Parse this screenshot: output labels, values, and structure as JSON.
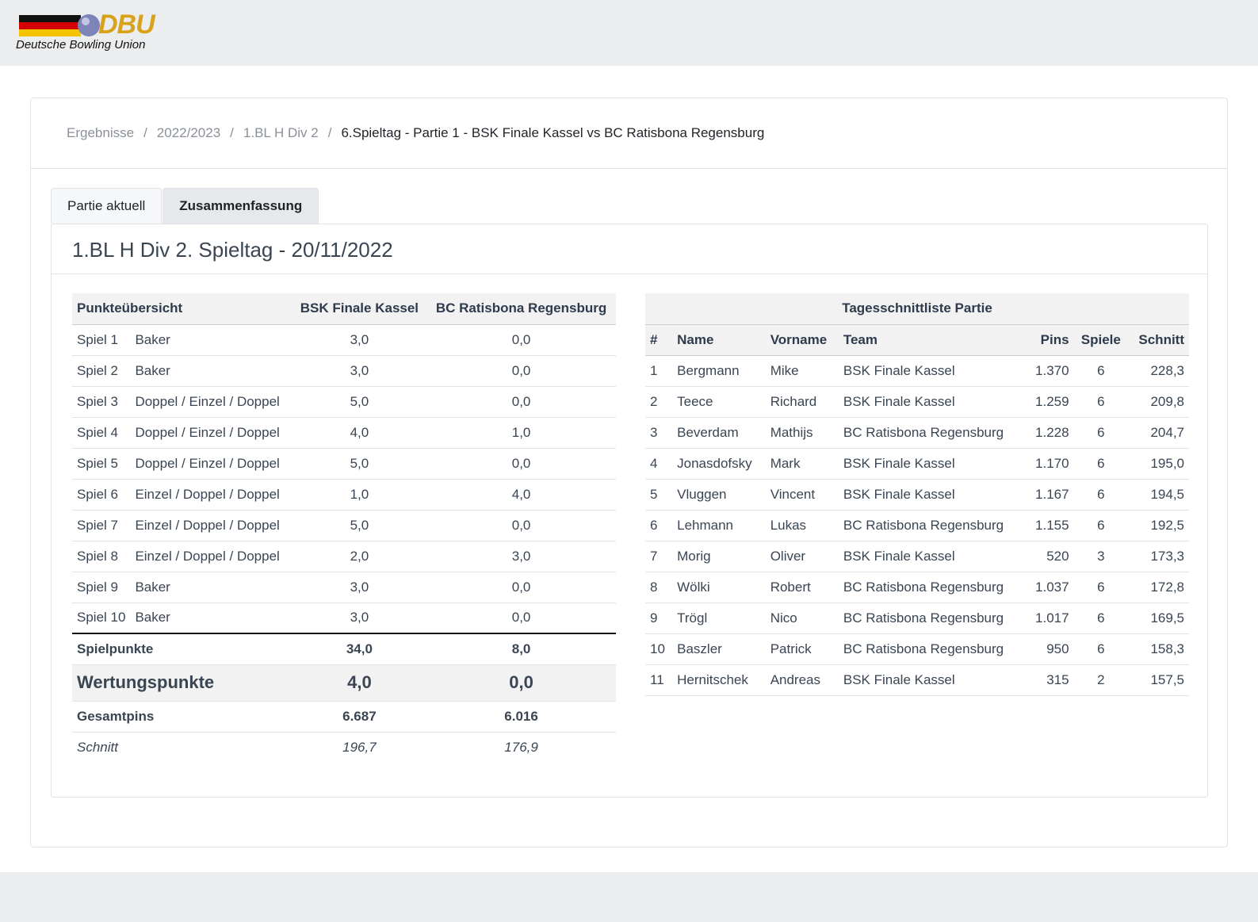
{
  "header": {
    "logo_text": "DBU",
    "subtitle": "Deutsche Bowling Union"
  },
  "breadcrumb": [
    "Ergebnisse",
    "2022/2023",
    "1.BL H Div 2",
    "6.Spieltag - Partie 1 - BSK Finale Kassel vs BC Ratisbona Regensburg"
  ],
  "tabs": [
    "Partie aktuell",
    "Zusammenfassung"
  ],
  "card_title": "1.BL H Div 2. Spieltag - 20/11/2022",
  "left_table": {
    "header": [
      "Punkteübersicht",
      "BSK Finale Kassel",
      "BC Ratisbona Regensburg"
    ],
    "rows": [
      [
        "Spiel 1",
        "Baker",
        "3,0",
        "0,0"
      ],
      [
        "Spiel 2",
        "Baker",
        "3,0",
        "0,0"
      ],
      [
        "Spiel 3",
        "Doppel / Einzel / Doppel",
        "5,0",
        "0,0"
      ],
      [
        "Spiel 4",
        "Doppel / Einzel / Doppel",
        "4,0",
        "1,0"
      ],
      [
        "Spiel 5",
        "Doppel / Einzel / Doppel",
        "5,0",
        "0,0"
      ],
      [
        "Spiel 6",
        "Einzel / Doppel / Doppel",
        "1,0",
        "4,0"
      ],
      [
        "Spiel 7",
        "Einzel / Doppel / Doppel",
        "5,0",
        "0,0"
      ],
      [
        "Spiel 8",
        "Einzel / Doppel / Doppel",
        "2,0",
        "3,0"
      ],
      [
        "Spiel 9",
        "Baker",
        "3,0",
        "0,0"
      ],
      [
        "Spiel 10",
        "Baker",
        "3,0",
        "0,0"
      ]
    ],
    "summary": [
      [
        "Spielpunkte",
        "34,0",
        "8,0"
      ],
      [
        "Wertungspunkte",
        "4,0",
        "0,0"
      ],
      [
        "Gesamtpins",
        "6.687",
        "6.016"
      ],
      [
        "Schnitt",
        "196,7",
        "176,9"
      ]
    ]
  },
  "right_table": {
    "title": "Tagesschnittliste Partie",
    "header": [
      "#",
      "Name",
      "Vorname",
      "Team",
      "Pins",
      "Spiele",
      "Schnitt"
    ],
    "rows": [
      [
        "1",
        "Bergmann",
        "Mike",
        "BSK Finale Kassel",
        "1.370",
        "6",
        "228,3"
      ],
      [
        "2",
        "Teece",
        "Richard",
        "BSK Finale Kassel",
        "1.259",
        "6",
        "209,8"
      ],
      [
        "3",
        "Beverdam",
        "Mathijs",
        "BC Ratisbona Regensburg",
        "1.228",
        "6",
        "204,7"
      ],
      [
        "4",
        "Jonasdofsky",
        "Mark",
        "BSK Finale Kassel",
        "1.170",
        "6",
        "195,0"
      ],
      [
        "5",
        "Vluggen",
        "Vincent",
        "BSK Finale Kassel",
        "1.167",
        "6",
        "194,5"
      ],
      [
        "6",
        "Lehmann",
        "Lukas",
        "BC Ratisbona Regensburg",
        "1.155",
        "6",
        "192,5"
      ],
      [
        "7",
        "Morig",
        "Oliver",
        "BSK Finale Kassel",
        "520",
        "3",
        "173,3"
      ],
      [
        "8",
        "Wölki",
        "Robert",
        "BC Ratisbona Regensburg",
        "1.037",
        "6",
        "172,8"
      ],
      [
        "9",
        "Trögl",
        "Nico",
        "BC Ratisbona Regensburg",
        "1.017",
        "6",
        "169,5"
      ],
      [
        "10",
        "Baszler",
        "Patrick",
        "BC Ratisbona Regensburg",
        "950",
        "6",
        "158,3"
      ],
      [
        "11",
        "Hernitschek",
        "Andreas",
        "BSK Finale Kassel",
        "315",
        "2",
        "157,5"
      ]
    ]
  }
}
